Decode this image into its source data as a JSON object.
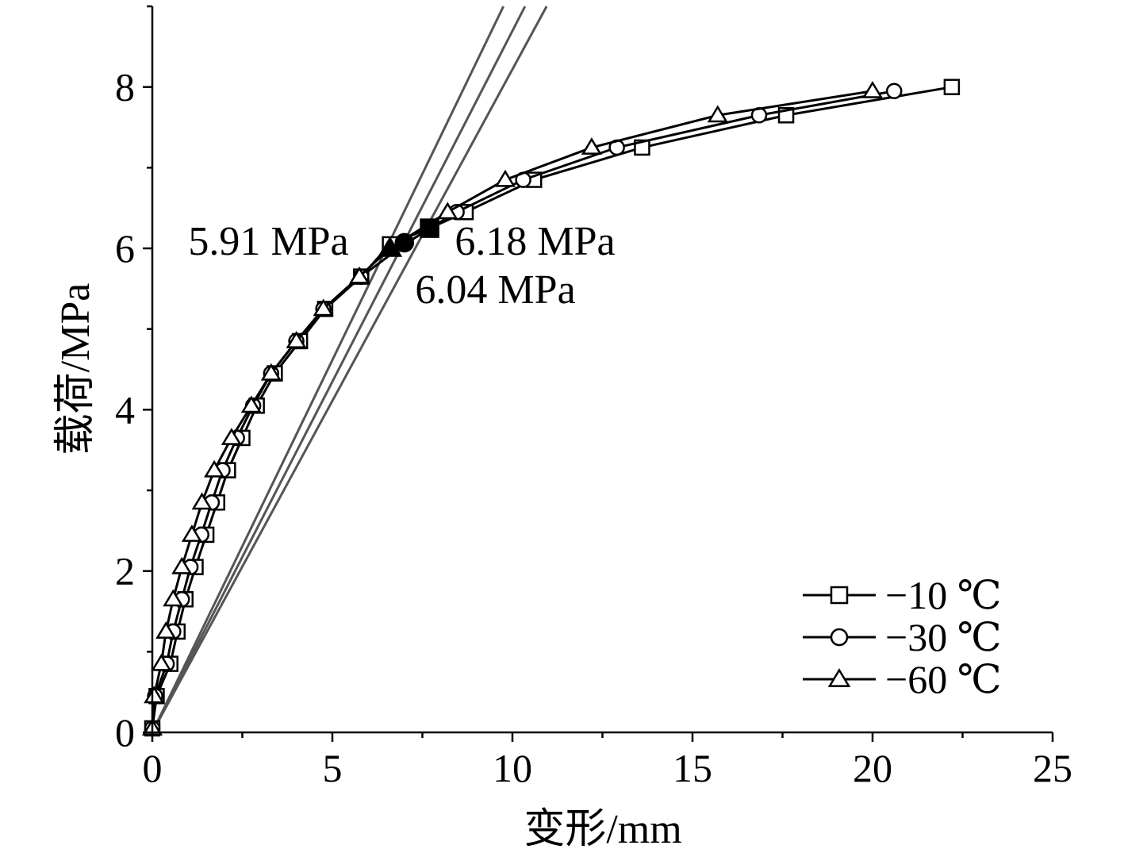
{
  "chart_data": {
    "type": "line",
    "title": "",
    "xlabel": "变形/mm",
    "ylabel": "载荷/MPa",
    "xlim": [
      0,
      25
    ],
    "ylim": [
      0,
      9
    ],
    "xticks": [
      0,
      5,
      10,
      15,
      20,
      25
    ],
    "yticks": [
      0,
      2,
      4,
      6,
      8
    ],
    "grid": false,
    "legend_position": "bottom-right",
    "series": [
      {
        "name": "−10 ℃",
        "marker": "square",
        "x": [
          0,
          0.12,
          0.5,
          0.7,
          0.92,
          1.2,
          1.5,
          1.8,
          2.1,
          2.5,
          2.9,
          3.4,
          4.1,
          4.8,
          5.8,
          6.6,
          7.7,
          8.7,
          10.6,
          13.6,
          17.6,
          22.2
        ],
        "y": [
          0.05,
          0.45,
          0.85,
          1.25,
          1.65,
          2.05,
          2.45,
          2.85,
          3.25,
          3.65,
          4.05,
          4.45,
          4.85,
          5.25,
          5.65,
          6.05,
          6.25,
          6.45,
          6.85,
          7.25,
          7.65,
          8.0
        ]
      },
      {
        "name": "−30 ℃",
        "marker": "circle",
        "x": [
          0,
          0.08,
          0.4,
          0.58,
          0.82,
          1.06,
          1.36,
          1.65,
          1.95,
          2.35,
          2.8,
          3.3,
          4.0,
          4.75,
          5.8,
          7.0,
          8.45,
          10.3,
          12.9,
          16.85,
          20.6
        ],
        "y": [
          0.05,
          0.45,
          0.85,
          1.25,
          1.65,
          2.05,
          2.45,
          2.85,
          3.25,
          3.65,
          4.05,
          4.45,
          4.85,
          5.25,
          5.65,
          6.05,
          6.45,
          6.85,
          7.25,
          7.65,
          7.95
        ]
      },
      {
        "name": "−60 ℃",
        "marker": "triangle",
        "x": [
          0,
          0.05,
          0.25,
          0.38,
          0.58,
          0.82,
          1.1,
          1.38,
          1.72,
          2.2,
          2.75,
          3.3,
          4.0,
          4.75,
          5.75,
          6.6,
          8.2,
          9.8,
          12.2,
          15.7,
          20.0
        ],
        "y": [
          0.05,
          0.45,
          0.85,
          1.25,
          1.65,
          2.05,
          2.45,
          2.85,
          3.25,
          3.65,
          4.05,
          4.45,
          4.85,
          5.25,
          5.65,
          6.0,
          6.45,
          6.85,
          7.25,
          7.65,
          7.95
        ]
      }
    ],
    "tangent_lines": [
      {
        "x": [
          0,
          9.75
        ],
        "y": [
          0,
          9
        ]
      },
      {
        "x": [
          0,
          10.35
        ],
        "y": [
          0,
          9
        ]
      },
      {
        "x": [
          0,
          10.95
        ],
        "y": [
          0,
          9
        ]
      }
    ],
    "highlight_points": [
      {
        "series": "−60 ℃",
        "marker": "triangle",
        "x": 6.6,
        "y": 6.0
      },
      {
        "series": "−30 ℃",
        "marker": "circle",
        "x": 7.0,
        "y": 6.07
      },
      {
        "series": "−10 ℃",
        "marker": "square",
        "x": 7.7,
        "y": 6.25
      }
    ],
    "annotations": [
      {
        "text": "5.91 MPa",
        "x": 1.0,
        "y": 6.1
      },
      {
        "text": "6.18 MPa",
        "x": 8.4,
        "y": 6.1
      },
      {
        "text": "6.04 MPa",
        "x": 7.3,
        "y": 5.5
      }
    ]
  }
}
